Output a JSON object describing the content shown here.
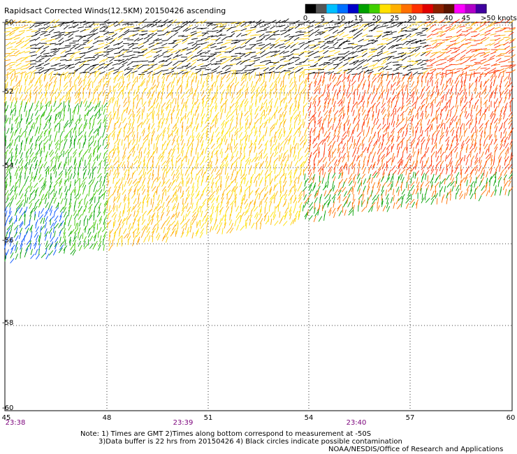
{
  "title": "Rapidsact Corrected Winds(12.5KM) 20150426 ascending",
  "colorbar": {
    "tick_labels": [
      "0",
      "5",
      "10",
      "15",
      "20",
      "25",
      "30",
      "35",
      "40",
      "45",
      ">50 knots"
    ],
    "colors": [
      "#000000",
      "#555555",
      "#00c0ff",
      "#0070ff",
      "#0000c8",
      "#00a000",
      "#40d000",
      "#ffe000",
      "#ffb000",
      "#ff7000",
      "#ff3000",
      "#e00000",
      "#8b2000",
      "#5a1400",
      "#ff00ff",
      "#b000c8",
      "#4000a0"
    ]
  },
  "map": {
    "lat_labels": [
      "-50",
      "-52",
      "-54",
      "-56",
      "-58",
      "-60"
    ],
    "lon_labels": [
      "45",
      "48",
      "51",
      "54",
      "57",
      "60"
    ],
    "lat_range": [
      -60,
      -50
    ],
    "lon_range": [
      45,
      60
    ],
    "times": [
      "23:38",
      "23:39",
      "23:40"
    ]
  },
  "notes": {
    "line1": "Note: 1) Times are GMT 2)Times along bottom correspond to measurement at -50S",
    "line2": "3)Data buffer is 22 hrs from 20150426 4) Black circles indicate possible contamination",
    "line3": "NOAA/NESDIS/Office of Research and Applications"
  }
}
